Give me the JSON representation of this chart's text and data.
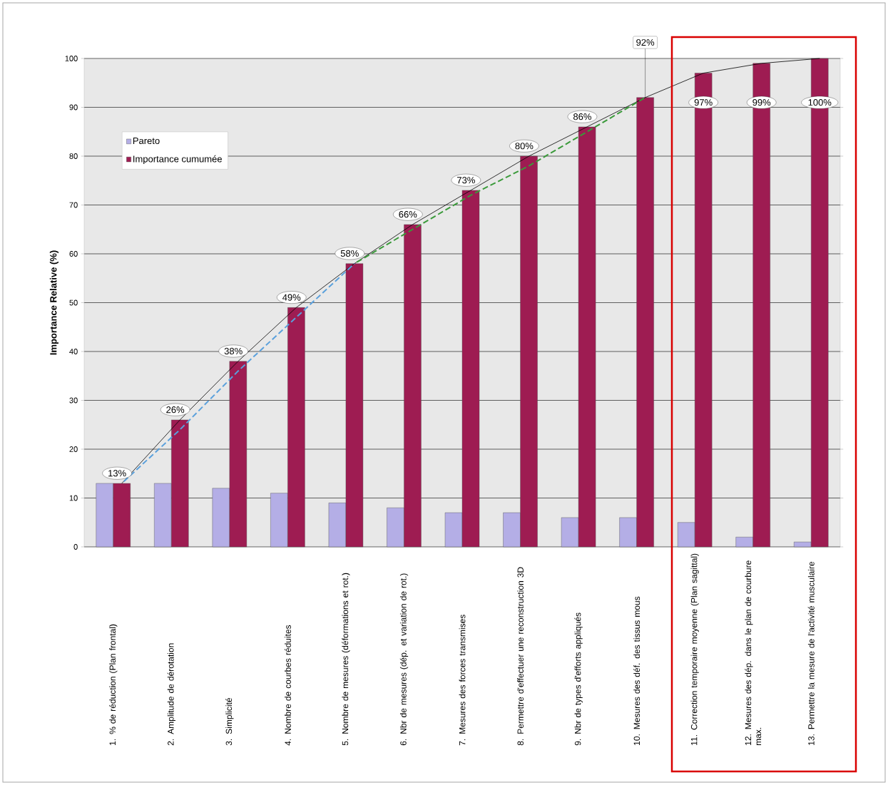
{
  "chart_data": {
    "type": "bar",
    "ylabel": "Importance Relative (%)",
    "categories": [
      "1. % de réduction (Plan frontal)",
      "2. Amplitude de dérotation",
      "3. Simplicité",
      "4. Nombre de courbes réduites",
      "5. Nombre de mesures (déformations et rot.)",
      "6. Nbr de mesures (dép. et variation de rot.)",
      "7. Mesures des forces transmises",
      "8. Permettre d'effectuer une reconstruction 3D",
      "9. Nbr de types d'efforts appliqués",
      "10. Mesures des déf. des tissus mous",
      "11. Correction temporaire moyenne (Plan sagittal)",
      "12. Mesures des dép. dans le plan de courbure max.",
      "13. Permettre la mesure de l'activité musculaire"
    ],
    "series": [
      {
        "name": "Pareto",
        "type": "bar",
        "color": "#b4aee6",
        "values": [
          13,
          13,
          12,
          11,
          9,
          8,
          7,
          7,
          6,
          6,
          5,
          2,
          1
        ]
      },
      {
        "name": "Importance cumumée",
        "type": "bar",
        "color": "#9e1c52",
        "values": [
          13,
          26,
          38,
          49,
          58,
          66,
          73,
          80,
          86,
          92,
          97,
          99,
          100
        ],
        "value_labels": [
          "13%",
          "26%",
          "38%",
          "49%",
          "58%",
          "66%",
          "73%",
          "80%",
          "86%",
          "92%",
          "97%",
          "99%",
          "100%"
        ]
      },
      {
        "type": "line",
        "color": "#000000",
        "line_style": "solid",
        "values": [
          13,
          26,
          38,
          49,
          58,
          66,
          73,
          80,
          86,
          92,
          97,
          99,
          100
        ]
      },
      {
        "type": "line",
        "color": "#5aa0dc",
        "line_style": "dashed",
        "values": [
          13,
          24,
          36,
          47,
          58,
          null,
          null,
          null,
          null,
          null,
          null,
          null,
          null
        ]
      },
      {
        "type": "line",
        "color": "#3a9a3a",
        "line_style": "dashed",
        "values": [
          null,
          null,
          null,
          null,
          58,
          65,
          72,
          78,
          85,
          92,
          null,
          null,
          null
        ]
      }
    ],
    "ylim": [
      0,
      100
    ],
    "yticks": [
      0,
      10,
      20,
      30,
      40,
      50,
      60,
      70,
      80,
      90,
      100
    ],
    "grid": "y",
    "legend": "top left"
  }
}
